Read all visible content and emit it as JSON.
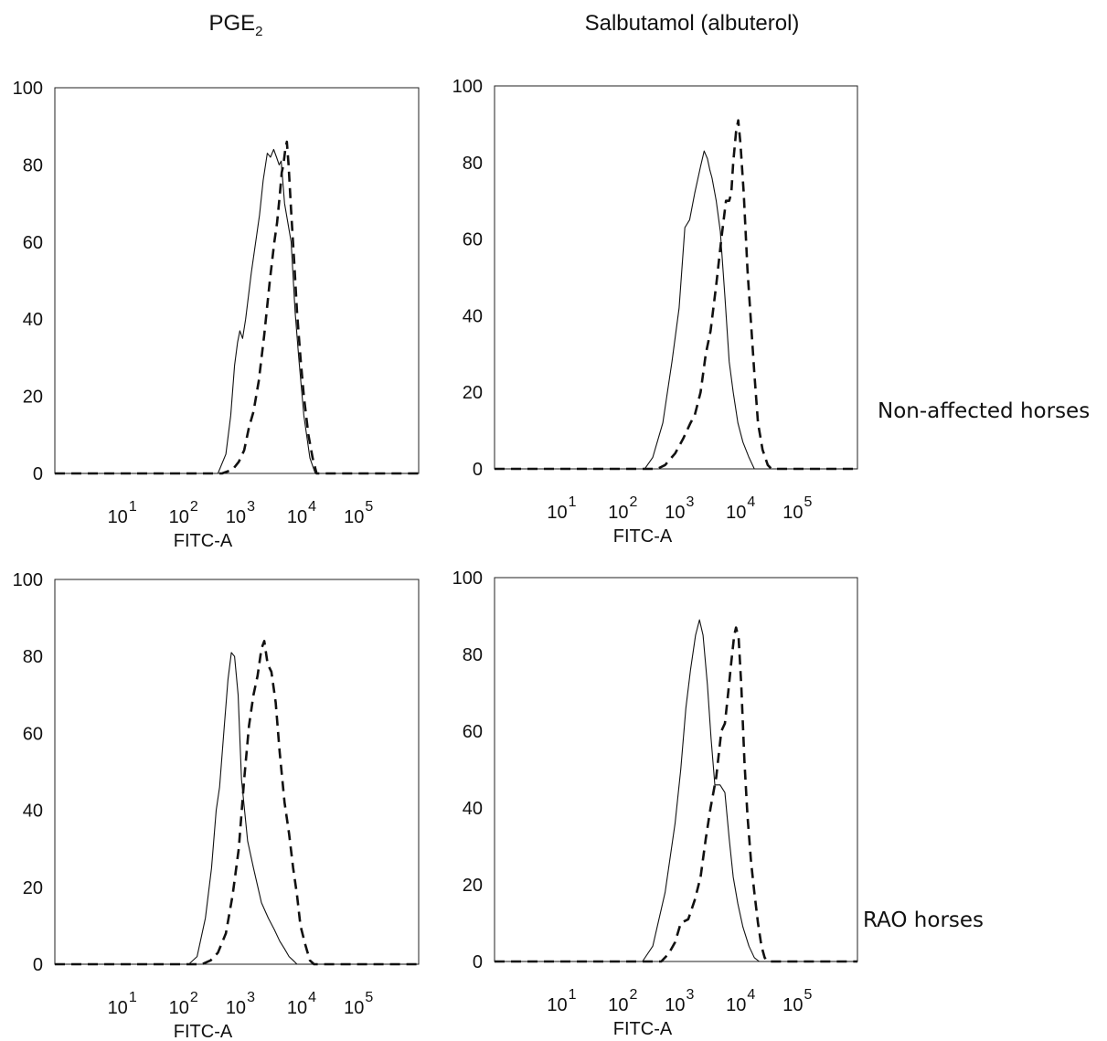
{
  "column_titles": {
    "left_base": "PGE",
    "left_sub": "2",
    "right": "Salbutamol (albuterol)"
  },
  "row_labels": {
    "top": "Non-affected horses",
    "bottom": "RAO horses"
  },
  "chart_data": [
    {
      "type": "line",
      "xlabel": "FITC-A",
      "ylabel": "",
      "xscale": "log",
      "xlim": [
        250,
        300000
      ],
      "ylim": [
        0,
        100
      ],
      "yticks": [
        "0",
        "20",
        "40",
        "60",
        "80",
        "100"
      ],
      "xticks": [
        {
          "base": "10",
          "exp": "1",
          "x": 1000
        },
        {
          "base": "10",
          "exp": "2",
          "x": 3300
        },
        {
          "base": "10",
          "exp": "3",
          "x": 10000
        },
        {
          "base": "10",
          "exp": "4",
          "x": 33000
        },
        {
          "base": "10",
          "exp": "5",
          "x": 100000
        }
      ],
      "series": [
        {
          "style": "solid",
          "points": [
            [
              250,
              0
            ],
            [
              6000,
              0
            ],
            [
              7000,
              5
            ],
            [
              7700,
              15
            ],
            [
              8300,
              28
            ],
            [
              8800,
              34
            ],
            [
              9200,
              37
            ],
            [
              9700,
              35
            ],
            [
              10300,
              40
            ],
            [
              11500,
              52
            ],
            [
              12800,
              62
            ],
            [
              13500,
              67
            ],
            [
              14500,
              76
            ],
            [
              15700,
              83
            ],
            [
              16700,
              82
            ],
            [
              17800,
              84
            ],
            [
              18800,
              82
            ],
            [
              19800,
              80
            ],
            [
              20600,
              81
            ],
            [
              22000,
              70
            ],
            [
              25000,
              60
            ],
            [
              27000,
              42
            ],
            [
              29000,
              30
            ],
            [
              32000,
              15
            ],
            [
              36000,
              4
            ],
            [
              40000,
              0
            ],
            [
              300000,
              0
            ]
          ]
        },
        {
          "style": "dashed",
          "points": [
            [
              250,
              0
            ],
            [
              6500,
              0
            ],
            [
              8000,
              1
            ],
            [
              9000,
              3
            ],
            [
              10000,
              6
            ],
            [
              11000,
              12
            ],
            [
              12000,
              16
            ],
            [
              13300,
              24
            ],
            [
              14800,
              36
            ],
            [
              16500,
              50
            ],
            [
              18000,
              60
            ],
            [
              19000,
              65
            ],
            [
              20000,
              72
            ],
            [
              20800,
              78
            ],
            [
              21500,
              80
            ],
            [
              22300,
              84
            ],
            [
              23000,
              86
            ],
            [
              23800,
              80
            ],
            [
              25000,
              68
            ],
            [
              26500,
              55
            ],
            [
              28000,
              42
            ],
            [
              30000,
              30
            ],
            [
              32000,
              20
            ],
            [
              35000,
              10
            ],
            [
              38000,
              4
            ],
            [
              41000,
              0
            ],
            [
              300000,
              0
            ]
          ]
        }
      ]
    },
    {
      "type": "line",
      "xlabel": "FITC-A",
      "ylabel": "",
      "xscale": "log",
      "xlim": [
        250,
        300000
      ],
      "ylim": [
        0,
        100
      ],
      "yticks": [
        "0",
        "20",
        "40",
        "60",
        "80",
        "100"
      ],
      "xticks": [
        {
          "base": "10",
          "exp": "1",
          "x": 1000
        },
        {
          "base": "10",
          "exp": "2",
          "x": 3300
        },
        {
          "base": "10",
          "exp": "3",
          "x": 10000
        },
        {
          "base": "10",
          "exp": "4",
          "x": 33000
        },
        {
          "base": "10",
          "exp": "5",
          "x": 100000
        }
      ],
      "series": [
        {
          "style": "solid",
          "points": [
            [
              250,
              0
            ],
            [
              4700,
              0
            ],
            [
              5500,
              3
            ],
            [
              6700,
              12
            ],
            [
              8000,
              28
            ],
            [
              9200,
              42
            ],
            [
              10300,
              63
            ],
            [
              11300,
              65
            ],
            [
              12500,
              72
            ],
            [
              14000,
              79
            ],
            [
              15000,
              83
            ],
            [
              16000,
              81
            ],
            [
              16800,
              78
            ],
            [
              17500,
              76
            ],
            [
              19000,
              70
            ],
            [
              20600,
              62
            ],
            [
              22500,
              45
            ],
            [
              24500,
              28
            ],
            [
              26500,
              20
            ],
            [
              29000,
              12
            ],
            [
              32000,
              7
            ],
            [
              36000,
              3
            ],
            [
              40000,
              0
            ],
            [
              300000,
              0
            ]
          ]
        },
        {
          "style": "dashed",
          "points": [
            [
              250,
              0
            ],
            [
              6000,
              0
            ],
            [
              7000,
              1
            ],
            [
              8500,
              4
            ],
            [
              10000,
              8
            ],
            [
              11500,
              12
            ],
            [
              12500,
              14
            ],
            [
              14000,
              20
            ],
            [
              15500,
              30
            ],
            [
              17000,
              36
            ],
            [
              19000,
              48
            ],
            [
              21000,
              60
            ],
            [
              23000,
              70
            ],
            [
              24500,
              70
            ],
            [
              25500,
              72
            ],
            [
              26500,
              80
            ],
            [
              28000,
              88
            ],
            [
              29200,
              91
            ],
            [
              30500,
              85
            ],
            [
              32500,
              72
            ],
            [
              35000,
              52
            ],
            [
              37500,
              38
            ],
            [
              40000,
              25
            ],
            [
              43000,
              12
            ],
            [
              47000,
              5
            ],
            [
              52000,
              1
            ],
            [
              56000,
              0
            ],
            [
              300000,
              0
            ]
          ]
        }
      ]
    },
    {
      "type": "line",
      "xlabel": "FITC-A",
      "ylabel": "",
      "xscale": "log",
      "xlim": [
        250,
        300000
      ],
      "ylim": [
        0,
        100
      ],
      "yticks": [
        "0",
        "20",
        "40",
        "60",
        "80",
        "100"
      ],
      "xticks": [
        {
          "base": "10",
          "exp": "1",
          "x": 1000
        },
        {
          "base": "10",
          "exp": "2",
          "x": 3300
        },
        {
          "base": "10",
          "exp": "3",
          "x": 10000
        },
        {
          "base": "10",
          "exp": "4",
          "x": 33000
        },
        {
          "base": "10",
          "exp": "5",
          "x": 100000
        }
      ],
      "series": [
        {
          "style": "solid",
          "points": [
            [
              250,
              0
            ],
            [
              3400,
              0
            ],
            [
              4000,
              2
            ],
            [
              4700,
              12
            ],
            [
              5300,
              25
            ],
            [
              5800,
              40
            ],
            [
              6200,
              46
            ],
            [
              6800,
              62
            ],
            [
              7300,
              74
            ],
            [
              7800,
              81
            ],
            [
              8300,
              80
            ],
            [
              8900,
              70
            ],
            [
              9500,
              48
            ],
            [
              10700,
              32
            ],
            [
              12000,
              25
            ],
            [
              14000,
              16
            ],
            [
              16000,
              12
            ],
            [
              18000,
              9
            ],
            [
              20000,
              6
            ],
            [
              22000,
              4
            ],
            [
              24000,
              2
            ],
            [
              26000,
              1
            ],
            [
              28000,
              0
            ],
            [
              300000,
              0
            ]
          ]
        },
        {
          "style": "dashed",
          "points": [
            [
              250,
              0
            ],
            [
              4400,
              0
            ],
            [
              5200,
              1
            ],
            [
              6000,
              3
            ],
            [
              7000,
              8
            ],
            [
              8000,
              18
            ],
            [
              9000,
              30
            ],
            [
              10000,
              48
            ],
            [
              11000,
              62
            ],
            [
              12000,
              70
            ],
            [
              13000,
              75
            ],
            [
              14000,
              82
            ],
            [
              14800,
              84
            ],
            [
              15800,
              78
            ],
            [
              17000,
              76
            ],
            [
              18500,
              68
            ],
            [
              20000,
              55
            ],
            [
              22000,
              42
            ],
            [
              24000,
              34
            ],
            [
              26000,
              25
            ],
            [
              28000,
              18
            ],
            [
              30000,
              10
            ],
            [
              33000,
              5
            ],
            [
              36000,
              1
            ],
            [
              39000,
              0
            ],
            [
              300000,
              0
            ]
          ]
        }
      ]
    },
    {
      "type": "line",
      "xlabel": "FITC-A",
      "ylabel": "",
      "xscale": "log",
      "xlim": [
        250,
        300000
      ],
      "ylim": [
        0,
        100
      ],
      "yticks": [
        "0",
        "20",
        "40",
        "60",
        "80",
        "100"
      ],
      "xticks": [
        {
          "base": "10",
          "exp": "1",
          "x": 1000
        },
        {
          "base": "10",
          "exp": "2",
          "x": 3300
        },
        {
          "base": "10",
          "exp": "3",
          "x": 10000
        },
        {
          "base": "10",
          "exp": "4",
          "x": 33000
        },
        {
          "base": "10",
          "exp": "5",
          "x": 100000
        }
      ],
      "series": [
        {
          "style": "solid",
          "points": [
            [
              250,
              0
            ],
            [
              4500,
              0
            ],
            [
              5500,
              4
            ],
            [
              7000,
              18
            ],
            [
              8500,
              36
            ],
            [
              9500,
              50
            ],
            [
              10500,
              66
            ],
            [
              11500,
              76
            ],
            [
              12700,
              85
            ],
            [
              13700,
              89
            ],
            [
              14700,
              85
            ],
            [
              16000,
              72
            ],
            [
              17200,
              58
            ],
            [
              18500,
              46
            ],
            [
              20500,
              46
            ],
            [
              22500,
              44
            ],
            [
              24500,
              32
            ],
            [
              26500,
              22
            ],
            [
              29000,
              15
            ],
            [
              32000,
              9
            ],
            [
              36000,
              4
            ],
            [
              40000,
              1
            ],
            [
              44000,
              0
            ],
            [
              300000,
              0
            ]
          ]
        },
        {
          "style": "dashed",
          "points": [
            [
              250,
              0
            ],
            [
              6500,
              0
            ],
            [
              7500,
              2
            ],
            [
              8500,
              5
            ],
            [
              9500,
              10
            ],
            [
              11000,
              11
            ],
            [
              12500,
              16
            ],
            [
              14000,
              22
            ],
            [
              15500,
              32
            ],
            [
              17000,
              40
            ],
            [
              19000,
              48
            ],
            [
              21000,
              60
            ],
            [
              22500,
              62
            ],
            [
              24000,
              70
            ],
            [
              25500,
              78
            ],
            [
              27000,
              85
            ],
            [
              28000,
              87
            ],
            [
              29500,
              84
            ],
            [
              31000,
              72
            ],
            [
              33000,
              52
            ],
            [
              35000,
              38
            ],
            [
              37500,
              26
            ],
            [
              40000,
              18
            ],
            [
              43000,
              10
            ],
            [
              46000,
              4
            ],
            [
              49000,
              1
            ],
            [
              52000,
              0
            ],
            [
              300000,
              0
            ]
          ]
        }
      ]
    }
  ]
}
